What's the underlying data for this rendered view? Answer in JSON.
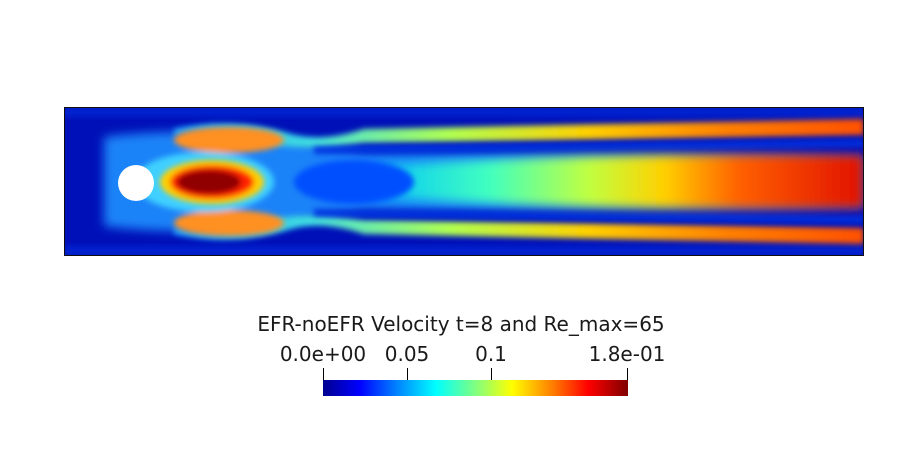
{
  "plot": {
    "title": "EFR-noEFR Velocity t=8 and Re_max=65",
    "field": "velocity magnitude difference",
    "colormap": "jet",
    "background": "#ffffff",
    "obstacle_color": "#ffffff"
  },
  "colorbar": {
    "min": 0.0,
    "max": 0.18,
    "ticks": [
      {
        "label": "0.0e+00",
        "value": 0.0
      },
      {
        "label": "0.05",
        "value": 0.05
      },
      {
        "label": "0.1",
        "value": 0.1
      },
      {
        "label": "1.8e-01",
        "value": 0.18
      }
    ],
    "colors": [
      "#00008f",
      "#0000ff",
      "#0080ff",
      "#00ffff",
      "#80ff80",
      "#ffff00",
      "#ff8000",
      "#ff0000",
      "#800000"
    ]
  }
}
